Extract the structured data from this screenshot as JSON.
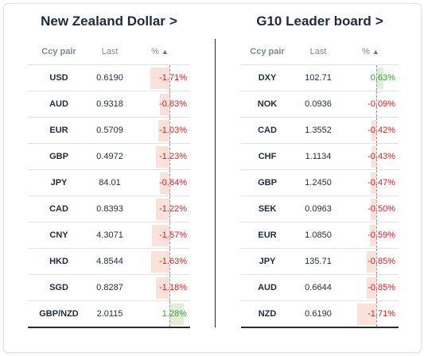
{
  "left_panel": {
    "title": "New Zealand Dollar",
    "columns": {
      "pair": "Ccy pair",
      "last": "Last",
      "pct": "%"
    },
    "rows": [
      {
        "pair": "USD",
        "last": "0.6190",
        "pct": "-1.71%",
        "value": -1.71
      },
      {
        "pair": "AUD",
        "last": "0.9318",
        "pct": "-0.83%",
        "value": -0.83
      },
      {
        "pair": "EUR",
        "last": "0.5709",
        "pct": "-1.03%",
        "value": -1.03
      },
      {
        "pair": "GBP",
        "last": "0.4972",
        "pct": "-1.23%",
        "value": -1.23
      },
      {
        "pair": "JPY",
        "last": "84.01",
        "pct": "-0.84%",
        "value": -0.84
      },
      {
        "pair": "CAD",
        "last": "0.8393",
        "pct": "-1.22%",
        "value": -1.22
      },
      {
        "pair": "CNY",
        "last": "4.3071",
        "pct": "-1.57%",
        "value": -1.57
      },
      {
        "pair": "HKD",
        "last": "4.8544",
        "pct": "-1.63%",
        "value": -1.63
      },
      {
        "pair": "SGD",
        "last": "0.8287",
        "pct": "-1.18%",
        "value": -1.18
      },
      {
        "pair": "GBP/NZD",
        "last": "2.0115",
        "pct": "1.28%",
        "value": 1.28
      }
    ]
  },
  "right_panel": {
    "title": "G10 Leader board",
    "columns": {
      "pair": "Ccy pair",
      "last": "Last",
      "pct": "%"
    },
    "rows": [
      {
        "pair": "DXY",
        "last": "102.71",
        "pct": "0.63%",
        "value": 0.63
      },
      {
        "pair": "NOK",
        "last": "0.0936",
        "pct": "-0.09%",
        "value": -0.09
      },
      {
        "pair": "CAD",
        "last": "1.3552",
        "pct": "-0.42%",
        "value": -0.42
      },
      {
        "pair": "CHF",
        "last": "1.1134",
        "pct": "-0.43%",
        "value": -0.43
      },
      {
        "pair": "GBP",
        "last": "1.2450",
        "pct": "-0.47%",
        "value": -0.47
      },
      {
        "pair": "SEK",
        "last": "0.0963",
        "pct": "-0.50%",
        "value": -0.5
      },
      {
        "pair": "EUR",
        "last": "1.0850",
        "pct": "-0.59%",
        "value": -0.59
      },
      {
        "pair": "JPY",
        "last": "135.71",
        "pct": "-0.85%",
        "value": -0.85
      },
      {
        "pair": "AUD",
        "last": "0.6644",
        "pct": "-0.85%",
        "value": -0.85
      },
      {
        "pair": "NZD",
        "last": "0.6190",
        "pct": "-1.71%",
        "value": -1.71
      }
    ]
  },
  "icons": {
    "title_arrow": ">",
    "sort": "▲"
  },
  "colors": {
    "negative": "#c62828",
    "positive": "#3a9c3a",
    "negative_bar": "#fbe1d9",
    "positive_bar": "#dff0d7"
  }
}
